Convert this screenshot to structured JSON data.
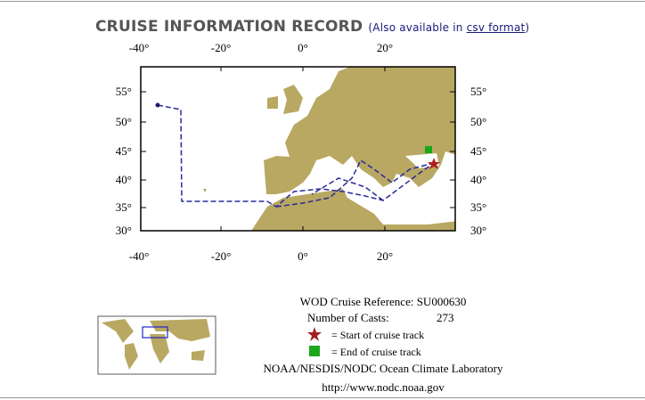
{
  "header": {
    "title": "CRUISE INFORMATION RECORD",
    "note_open": "(Also available in ",
    "link": "csv format",
    "note_close": ")"
  },
  "map": {
    "top_lon_labels": [
      "-40°",
      "-20°",
      "0°",
      "20°"
    ],
    "bottom_lon_labels": [
      "-40°",
      "-20°",
      "0°",
      "20°"
    ],
    "left_lat_labels": [
      "55°",
      "50°",
      "45°",
      "40°",
      "35°",
      "30°"
    ],
    "right_lat_labels": [
      "55°",
      "50°",
      "45°",
      "40°",
      "35°",
      "30°"
    ]
  },
  "info": {
    "reference": "WOD Cruise Reference: SU000630",
    "casts_label": "Number of Casts:",
    "casts_value": "273",
    "start_label": "= Start of cruise track",
    "end_label": "= End of cruise track",
    "lab": "NOAA/NESDIS/NODC Ocean Climate Laboratory",
    "url": "http://www.nodc.noaa.gov"
  }
}
